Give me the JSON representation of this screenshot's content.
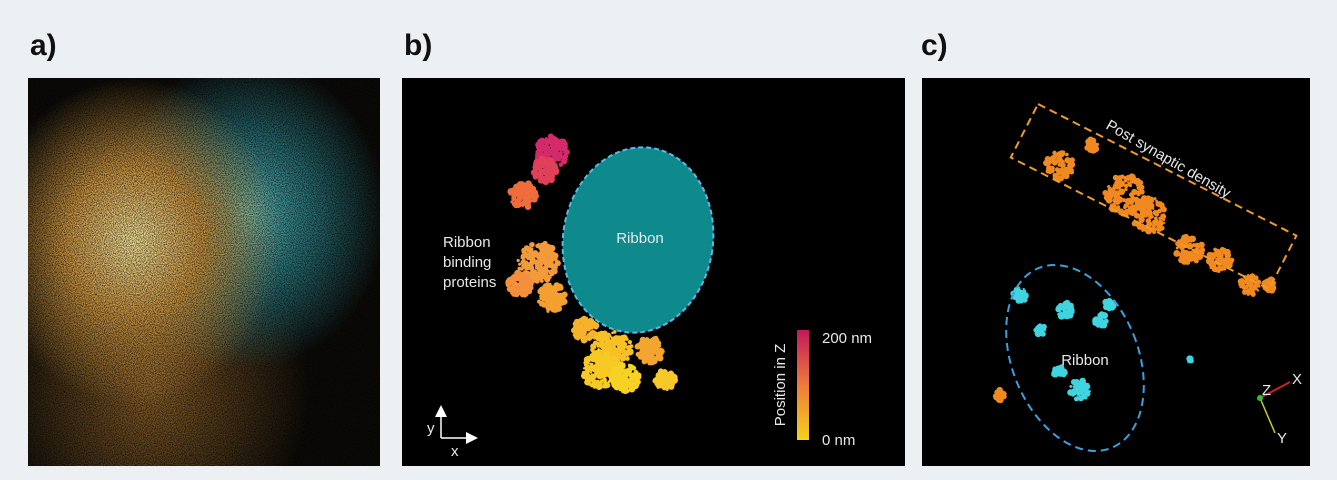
{
  "panels": [
    {
      "label": "a)"
    },
    {
      "label": "b)",
      "ribbon_label": "Ribbon",
      "protein_label": [
        "Ribbon",
        "binding",
        "proteins"
      ],
      "colorbar": {
        "title": "Position in Z",
        "max_label": "200 nm",
        "min_label": "0 nm"
      },
      "axes": {
        "y": "y",
        "x": "x"
      }
    },
    {
      "label": "c)",
      "density_label": "Post synaptic density",
      "ribbon_label": "Ribbon",
      "axes": {
        "z": "Z",
        "x": "X",
        "y": "Y"
      }
    }
  ]
}
